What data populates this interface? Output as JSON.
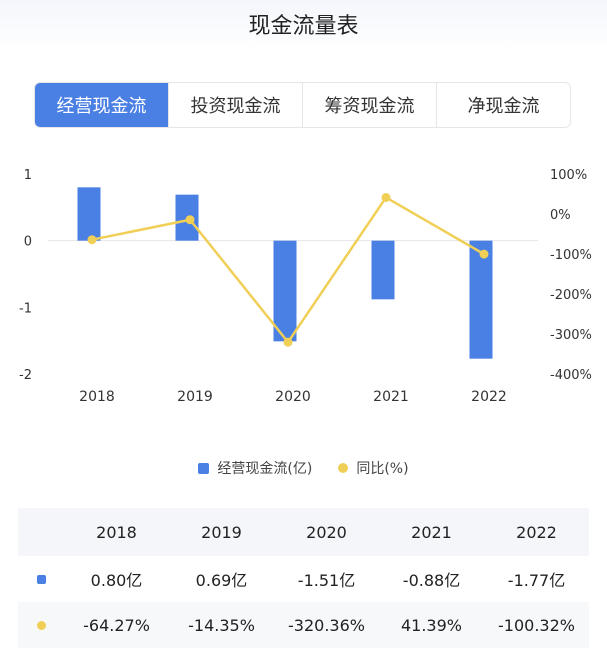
{
  "title": "现金流量表",
  "tabs": [
    {
      "label": "经营现金流",
      "active": true
    },
    {
      "label": "投资现金流",
      "active": false
    },
    {
      "label": "筹资现金流",
      "active": false
    },
    {
      "label": "净现金流",
      "active": false
    }
  ],
  "colors": {
    "bar": "#4a7fe3",
    "line": "#f0cf57",
    "active_tab": "#4a7fe3"
  },
  "chart_data": {
    "type": "bar",
    "categories": [
      "2018",
      "2019",
      "2020",
      "2021",
      "2022"
    ],
    "series": [
      {
        "name": "经营现金流(亿)",
        "type": "bar",
        "axis": "left",
        "values": [
          0.8,
          0.69,
          -1.51,
          -0.88,
          -1.77
        ]
      },
      {
        "name": "同比(%)",
        "type": "line",
        "axis": "right",
        "values": [
          -64.27,
          -14.35,
          -320.36,
          41.39,
          -100.32
        ]
      }
    ],
    "y_left": {
      "ylim": [
        -2,
        1
      ],
      "ticks": [
        "1",
        "0",
        "-1",
        "-2"
      ],
      "tick_values": [
        1,
        0,
        -1,
        -2
      ]
    },
    "y_right": {
      "ylim": [
        -400,
        100
      ],
      "ticks": [
        "100%",
        "0%",
        "-100%",
        "-200%",
        "-300%",
        "-400%"
      ],
      "tick_values": [
        100,
        0,
        -100,
        -200,
        -300,
        -400
      ]
    },
    "grid": false,
    "legend_position": "bottom"
  },
  "legend": {
    "bar_label": "经营现金流(亿)",
    "line_label": "同比(%)"
  },
  "table": {
    "header": [
      "2018",
      "2019",
      "2020",
      "2021",
      "2022"
    ],
    "rows": [
      {
        "marker": "bar",
        "cells": [
          "0.80亿",
          "0.69亿",
          "-1.51亿",
          "-0.88亿",
          "-1.77亿"
        ]
      },
      {
        "marker": "dot",
        "cells": [
          "-64.27%",
          "-14.35%",
          "-320.36%",
          "41.39%",
          "-100.32%"
        ]
      }
    ]
  }
}
